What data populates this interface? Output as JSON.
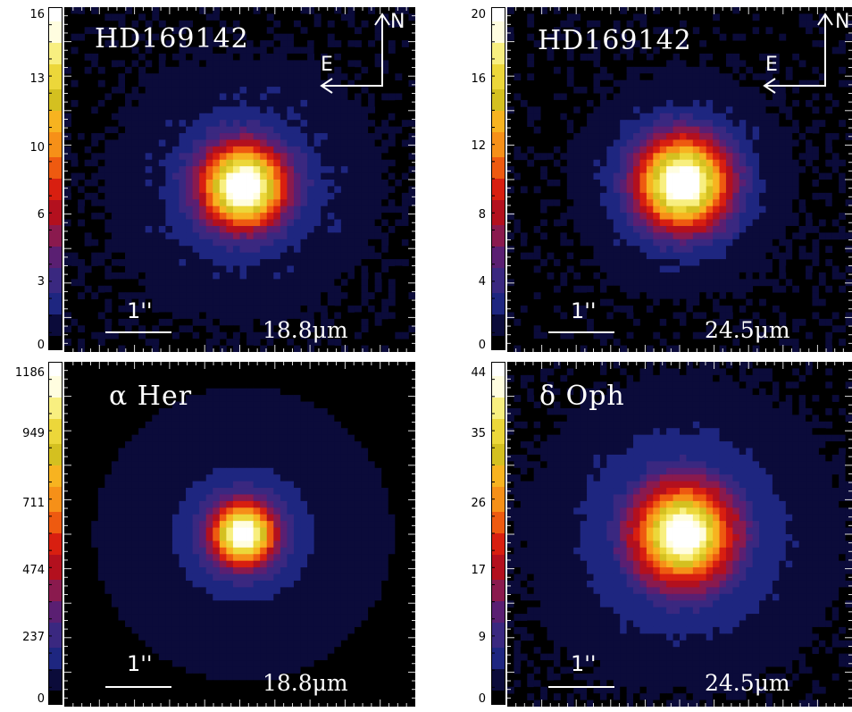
{
  "colormap": [
    "#000000",
    "#0b0b3a",
    "#1e2680",
    "#3a2880",
    "#5a1f72",
    "#8a1a4e",
    "#b3101e",
    "#d81f10",
    "#ee5a10",
    "#f69018",
    "#f7b320",
    "#d4c020",
    "#ecd73a",
    "#f8ef80",
    "#fffde0",
    "#ffffff"
  ],
  "panels": [
    {
      "label": "HD169142",
      "wavelength": "18.8μm",
      "scale_label": "1''",
      "compass": {
        "north": "N",
        "east": "E"
      },
      "colorbar_ticks": [
        "16",
        "13",
        "10",
        "6",
        "3",
        "0"
      ],
      "colorbar_max": 16
    },
    {
      "label": "HD169142",
      "wavelength": "24.5μm",
      "scale_label": "1''",
      "compass": {
        "north": "N",
        "east": "E"
      },
      "colorbar_ticks": [
        "20",
        "16",
        "12",
        "8",
        "4",
        "0"
      ],
      "colorbar_max": 20
    },
    {
      "label": "α Her",
      "wavelength": "18.8μm",
      "scale_label": "1''",
      "colorbar_ticks": [
        "1186",
        "949",
        "711",
        "474",
        "237",
        "0"
      ],
      "colorbar_max": 1186
    },
    {
      "label": "δ Oph",
      "wavelength": "24.5μm",
      "scale_label": "1''",
      "colorbar_ticks": [
        "44",
        "35",
        "26",
        "17",
        "9",
        "0"
      ],
      "colorbar_max": 44
    }
  ]
}
